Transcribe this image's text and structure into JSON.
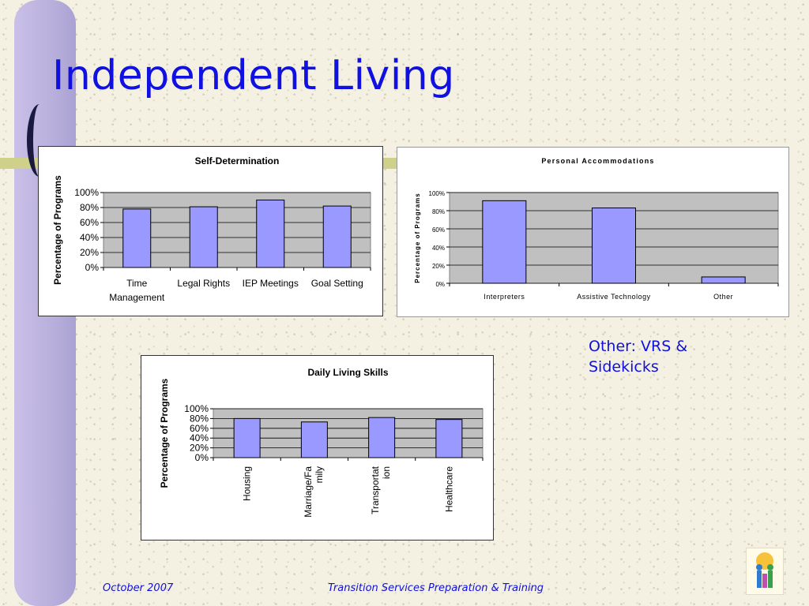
{
  "slide": {
    "title": "Independent Living",
    "note": "Other: VRS & Sidekicks",
    "footer_date": "October 2007",
    "footer_title": "Transition Services Preparation & Training"
  },
  "colors": {
    "bar": "#9999ff",
    "plot_bg": "#c0c0c0",
    "title": "#1010e0"
  },
  "chart_data": [
    {
      "id": "self",
      "type": "bar",
      "title": "Self-Determination",
      "ylabel": "Percentage of Programs",
      "xlabel": "",
      "categories": [
        "Time Management",
        "Legal Rights",
        "IEP Meetings",
        "Goal Setting"
      ],
      "values": [
        78,
        81,
        90,
        82
      ],
      "ylim": [
        0,
        100
      ],
      "ticks": [
        "0%",
        "20%",
        "40%",
        "60%",
        "80%",
        "100%"
      ],
      "grid": true
    },
    {
      "id": "personal",
      "type": "bar",
      "title": "Personal Accommodations",
      "ylabel": "Percentage of Programs",
      "xlabel": "",
      "categories": [
        "Interpreters",
        "Assistive Technology",
        "Other"
      ],
      "values": [
        91,
        83,
        7
      ],
      "ylim": [
        0,
        100
      ],
      "ticks": [
        "0%",
        "20%",
        "40%",
        "60%",
        "80%",
        "100%"
      ],
      "grid": true
    },
    {
      "id": "daily",
      "type": "bar",
      "title": "Daily Living Skills",
      "ylabel": "Percentage of Programs",
      "xlabel": "",
      "categories": [
        "Housing",
        "Marriage/Family",
        "Transportation",
        "Healthcare"
      ],
      "values": [
        80,
        73,
        82,
        78
      ],
      "ylim": [
        0,
        100
      ],
      "ticks": [
        "0%",
        "20%",
        "40%",
        "60%",
        "80%",
        "100%"
      ],
      "grid": true
    }
  ]
}
